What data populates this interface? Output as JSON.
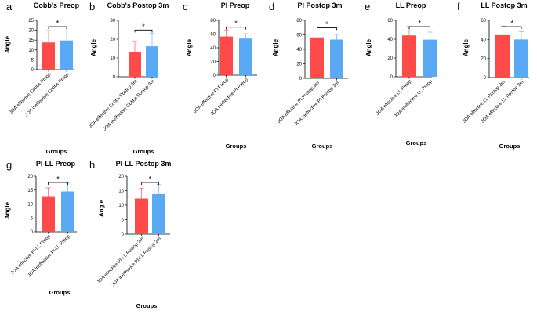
{
  "chart_data": [
    {
      "type": "bar",
      "letter": "a",
      "title": "Cobb's Preop",
      "ylabel": "Angle",
      "xlabel": "Groups",
      "ylim": [
        0,
        25
      ],
      "yticks": [
        0,
        5,
        10,
        15,
        20,
        25
      ],
      "categories": [
        "JOA effective Cobbs Preop",
        "JOA ineffective Cobbs Preop"
      ],
      "values": [
        13.8,
        14.8
      ],
      "errors": [
        6.0,
        6.8
      ],
      "significance": "*",
      "grid": false
    },
    {
      "type": "bar",
      "letter": "b",
      "title": "Cobb's Postop 3m",
      "ylabel": "Angle",
      "xlabel": "Groups",
      "ylim": [
        0,
        30
      ],
      "yticks": [
        0,
        10,
        20,
        30
      ],
      "categories": [
        "JOA effective Cobbs Postop 3m",
        "JOA ineffective Cobbs Postop 3m"
      ],
      "values": [
        13.0,
        16.2
      ],
      "errors": [
        5.8,
        7.0
      ],
      "significance": "*",
      "grid": false
    },
    {
      "type": "bar",
      "letter": "c",
      "title": "PI Preop",
      "ylabel": "Angle",
      "xlabel": "Groups",
      "ylim": [
        0,
        80
      ],
      "yticks": [
        0,
        20,
        40,
        60,
        80
      ],
      "categories": [
        "JOA effective PI Preop",
        "JOA ineffective PI Preop"
      ],
      "values": [
        56.5,
        53.5
      ],
      "errors": [
        9.0,
        7.0
      ],
      "significance": "*",
      "grid": false
    },
    {
      "type": "bar",
      "letter": "d",
      "title": "PI Postop 3m",
      "ylabel": "Angle",
      "xlabel": "Groups",
      "ylim": [
        0,
        80
      ],
      "yticks": [
        0,
        20,
        40,
        60,
        80
      ],
      "categories": [
        "JOA effective PI Postop 3m",
        "JOA ineffective PI Postop 3m"
      ],
      "values": [
        56.5,
        53.5
      ],
      "errors": [
        9.0,
        7.0
      ],
      "significance": "*",
      "grid": false
    },
    {
      "type": "bar",
      "letter": "e",
      "title": "LL Preop",
      "ylabel": "Angle",
      "xlabel": "Groups",
      "ylim": [
        0,
        60
      ],
      "yticks": [
        0,
        20,
        40,
        60
      ],
      "categories": [
        "JOA effective LL Preop",
        "JOA ineffective LL Preop"
      ],
      "values": [
        44.0,
        39.5
      ],
      "errors": [
        9.5,
        8.0
      ],
      "significance": "*",
      "grid": false
    },
    {
      "type": "bar",
      "letter": "f",
      "title": "LL Postop 3m",
      "ylabel": "Angle",
      "xlabel": "Groups",
      "ylim": [
        0,
        60
      ],
      "yticks": [
        0,
        20,
        40,
        60
      ],
      "categories": [
        "JOA effective LL Postop 3m",
        "JOA effective LL Postop 3m"
      ],
      "values": [
        44.5,
        40.0
      ],
      "errors": [
        9.5,
        8.0
      ],
      "significance": "*",
      "grid": false
    },
    {
      "type": "bar",
      "letter": "g",
      "title": "PI-LL Preop",
      "ylabel": "Angle",
      "xlabel": "Groups",
      "ylim": [
        0,
        20
      ],
      "yticks": [
        0,
        5,
        10,
        15,
        20
      ],
      "categories": [
        "JOA effective PI-LL Preop",
        "JOA ineffective PI-LL Preop"
      ],
      "values": [
        12.8,
        14.5
      ],
      "errors": [
        3.0,
        3.0
      ],
      "significance": "*",
      "grid": false
    },
    {
      "type": "bar",
      "letter": "h",
      "title": "PI-LL Postop 3m",
      "ylabel": "Angle",
      "xlabel": "Groups",
      "ylim": [
        0,
        20
      ],
      "yticks": [
        0,
        5,
        10,
        15,
        20
      ],
      "categories": [
        "JOA effective PI-LL Postop 3m",
        "JOA ineffective PI-LL Postop 3m"
      ],
      "values": [
        12.3,
        13.8
      ],
      "errors": [
        3.5,
        3.3
      ],
      "significance": "*",
      "grid": false
    }
  ],
  "colors": {
    "effective_fill": "#ff4a4a",
    "effective_error": "#ff7777",
    "ineffective_fill": "#5aa9f5",
    "ineffective_error": "#8cc3f8",
    "axis": "#000000"
  }
}
